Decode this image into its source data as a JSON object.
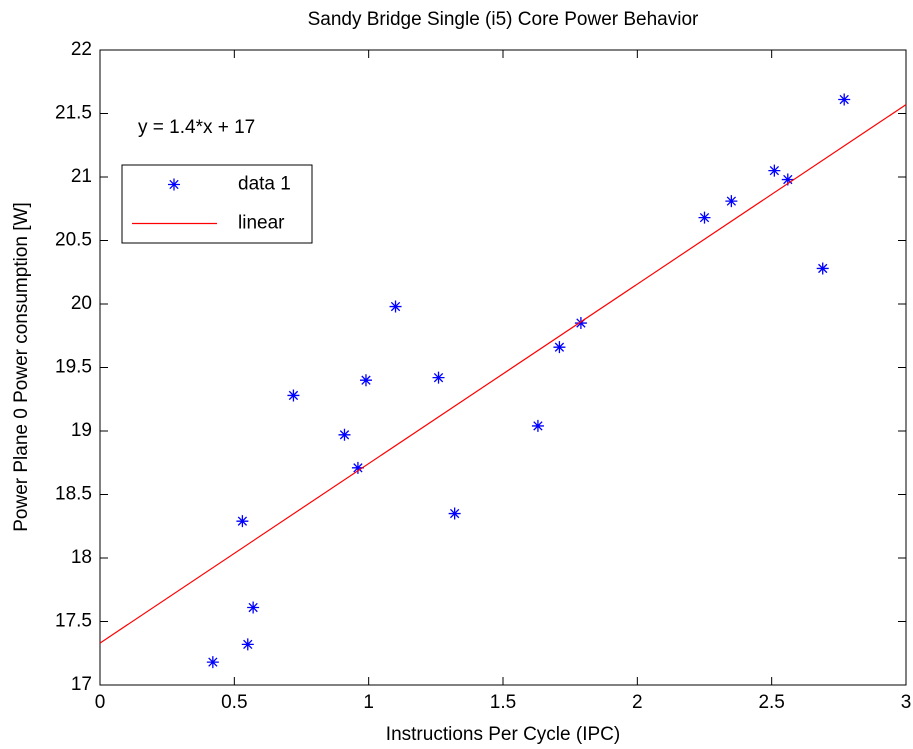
{
  "chart_data": {
    "type": "scatter",
    "title": "Sandy Bridge Single (i5) Core Power Behavior",
    "x_label": "Instructions Per Cycle (IPC)",
    "y_label": "Power Plane 0 Power consumption [W]",
    "annotation": "y = 1.4*x + 17",
    "xlim": [
      0,
      3
    ],
    "ylim": [
      17,
      22
    ],
    "xticks": [
      0,
      0.5,
      1,
      1.5,
      2,
      2.5,
      3
    ],
    "yticks": [
      17,
      17.5,
      18,
      18.5,
      19,
      19.5,
      20,
      20.5,
      21,
      21.5,
      22
    ],
    "grid": false,
    "legend": "upper left",
    "series": [
      {
        "name": "data 1",
        "type": "scatter",
        "color": "#0000ff",
        "x": [
          0.42,
          0.53,
          0.55,
          0.57,
          0.72,
          0.91,
          0.96,
          0.99,
          1.1,
          1.26,
          1.32,
          1.63,
          1.71,
          1.79,
          2.25,
          2.35,
          2.51,
          2.56,
          2.69,
          2.77
        ],
        "values": [
          17.18,
          18.29,
          17.32,
          17.61,
          19.28,
          18.97,
          18.71,
          19.4,
          19.98,
          19.42,
          18.35,
          19.04,
          19.66,
          19.85,
          20.68,
          20.81,
          21.05,
          20.98,
          20.28,
          21.61
        ]
      },
      {
        "name": "linear",
        "type": "line",
        "color": "#ff0000",
        "x": [
          0,
          3
        ],
        "values": [
          17.33,
          21.57
        ]
      }
    ]
  }
}
